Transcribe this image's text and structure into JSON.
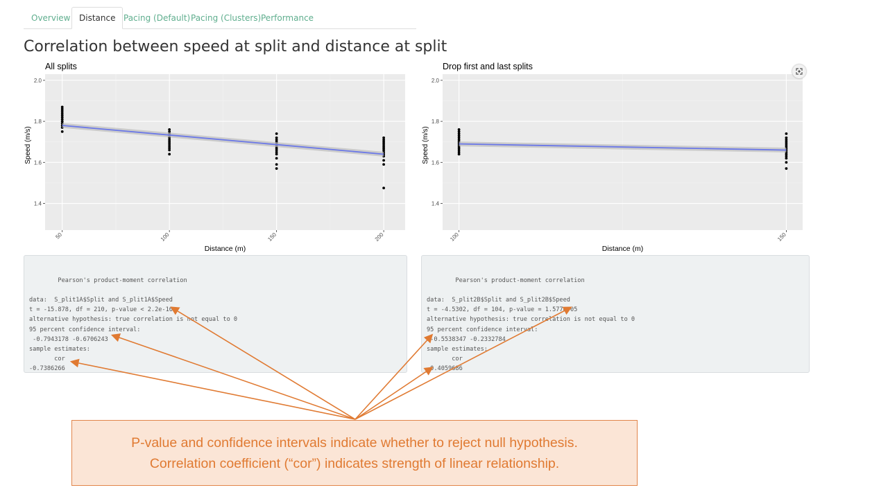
{
  "tabs": [
    {
      "label": "Overview",
      "active": false
    },
    {
      "label": "Distance",
      "active": true
    },
    {
      "label": "Pacing (Default)",
      "active": false
    },
    {
      "label": "Pacing (Clusters)",
      "active": false
    },
    {
      "label": "Performance",
      "active": false
    }
  ],
  "page_title": "Correlation between speed at split and distance at split",
  "chart_data": [
    {
      "type": "scatter",
      "title": "All splits",
      "xlabel": "Distance (m)",
      "ylabel": "Speed (m/s)",
      "x_ticks": [
        50,
        100,
        150,
        200
      ],
      "y_ticks": [
        1.4,
        1.6,
        1.8,
        2.0
      ],
      "xlim": [
        42,
        210
      ],
      "ylim": [
        1.27,
        2.03
      ],
      "points": [
        {
          "x": 50,
          "ys": [
            1.75,
            1.77,
            1.78,
            1.79,
            1.8,
            1.81,
            1.82,
            1.83,
            1.84,
            1.85,
            1.86,
            1.87
          ]
        },
        {
          "x": 100,
          "ys": [
            1.64,
            1.66,
            1.67,
            1.68,
            1.69,
            1.7,
            1.71,
            1.72,
            1.73,
            1.74,
            1.75,
            1.76
          ]
        },
        {
          "x": 150,
          "ys": [
            1.57,
            1.59,
            1.62,
            1.64,
            1.65,
            1.66,
            1.67,
            1.68,
            1.69,
            1.7,
            1.71,
            1.72,
            1.74
          ]
        },
        {
          "x": 200,
          "ys": [
            1.475,
            1.59,
            1.61,
            1.63,
            1.64,
            1.65,
            1.66,
            1.67,
            1.68,
            1.69,
            1.7,
            1.71,
            1.72
          ]
        }
      ],
      "fit": {
        "x": [
          50,
          200
        ],
        "y": [
          1.78,
          1.64
        ]
      },
      "grid": true
    },
    {
      "type": "scatter",
      "title": "Drop first and last splits",
      "xlabel": "Distance (m)",
      "ylabel": "Speed (m/s)",
      "x_ticks": [
        100,
        150
      ],
      "y_ticks": [
        1.4,
        1.6,
        1.8,
        2.0
      ],
      "xlim": [
        97.5,
        152.5
      ],
      "ylim": [
        1.27,
        2.03
      ],
      "points": [
        {
          "x": 100,
          "ys": [
            1.64,
            1.65,
            1.66,
            1.67,
            1.68,
            1.69,
            1.7,
            1.71,
            1.72,
            1.73,
            1.74,
            1.75,
            1.76
          ]
        },
        {
          "x": 150,
          "ys": [
            1.57,
            1.6,
            1.62,
            1.63,
            1.64,
            1.65,
            1.66,
            1.67,
            1.68,
            1.69,
            1.7,
            1.71,
            1.72,
            1.74
          ]
        }
      ],
      "fit": {
        "x": [
          100,
          150
        ],
        "y": [
          1.69,
          1.66
        ]
      },
      "grid": true
    }
  ],
  "outputs": [
    {
      "lines": [
        "",
        "\tPearson's product-moment correlation",
        "",
        "data:  S_plit1A$Split and S_plit1A$Speed",
        "t = -15.878, df = 210, p-value < 2.2e-16",
        "alternative hypothesis: true correlation is not equal to 0",
        "95 percent confidence interval:",
        " -0.7943178 -0.6706243",
        "sample estimates:",
        "       cor ",
        "-0.7386266"
      ]
    },
    {
      "lines": [
        "",
        "\tPearson's product-moment correlation",
        "",
        "data:  S_plit2B$Split and S_plit2B$Speed",
        "t = -4.5302, df = 104, p-value = 1.577e-05",
        "alternative hypothesis: true correlation is not equal to 0",
        "95 percent confidence interval:",
        " -0.5538347 -0.2332784",
        "sample estimates:",
        "       cor ",
        "-0.4059686"
      ]
    }
  ],
  "callout": {
    "line1": "P-value and confidence intervals indicate whether to reject null hypothesis.",
    "line2": "Correlation coefficient (“cor”) indicates strength of linear relationship."
  },
  "colors": {
    "accent": "#e07a32",
    "tab_link": "#5fae8e",
    "fit_line": "#6b78e8",
    "panel": "#ebebeb"
  },
  "icons": {
    "expand": "expand-icon"
  }
}
